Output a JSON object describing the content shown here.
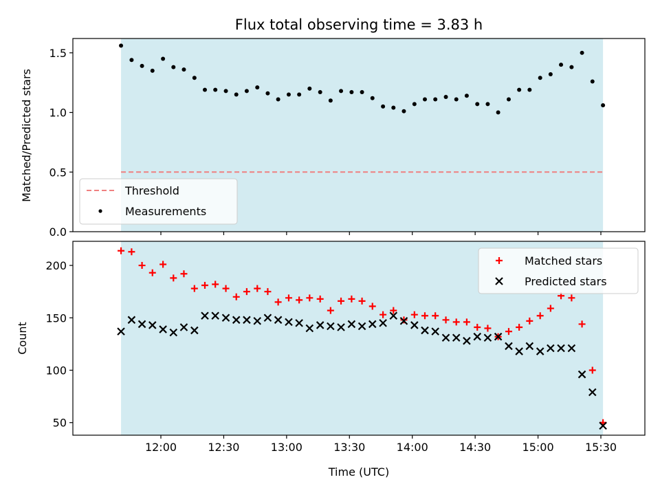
{
  "chart_data": [
    {
      "type": "scatter",
      "title": "Flux total observing time = 3.83 h",
      "xlabel": "",
      "ylabel": "Matched/Predicted stars",
      "ylim": [
        0,
        1.62
      ],
      "yticks": [
        0.0,
        0.5,
        1.0,
        1.5
      ],
      "ytick_labels": [
        "0.0",
        "0.5",
        "1.0",
        "1.5"
      ],
      "x_unit": "time (UTC, hours)",
      "xlim": [
        11.3,
        15.85
      ],
      "shade": {
        "from": 11.683,
        "to": 15.517,
        "color": "#d3ebf1"
      },
      "threshold": {
        "label": "Threshold",
        "value": 0.5,
        "color": "#f08080"
      },
      "legend": {
        "position": "lower-left",
        "entries": [
          "Threshold",
          "Measurements"
        ]
      },
      "series": [
        {
          "name": "Measurements",
          "color": "#000000",
          "x": [
            11.683,
            11.767,
            11.85,
            11.933,
            12.017,
            12.1,
            12.183,
            12.267,
            12.35,
            12.433,
            12.517,
            12.6,
            12.683,
            12.767,
            12.85,
            12.933,
            13.017,
            13.1,
            13.183,
            13.267,
            13.35,
            13.433,
            13.517,
            13.6,
            13.683,
            13.767,
            13.85,
            13.933,
            14.017,
            14.1,
            14.183,
            14.267,
            14.35,
            14.433,
            14.517,
            14.6,
            14.683,
            14.767,
            14.85,
            14.933,
            15.017,
            15.1,
            15.183,
            15.267,
            15.35,
            15.433,
            15.517
          ],
          "y": [
            1.56,
            1.44,
            1.39,
            1.35,
            1.45,
            1.38,
            1.36,
            1.29,
            1.19,
            1.19,
            1.18,
            1.15,
            1.18,
            1.21,
            1.16,
            1.11,
            1.15,
            1.15,
            1.2,
            1.17,
            1.1,
            1.18,
            1.17,
            1.17,
            1.12,
            1.05,
            1.04,
            1.01,
            1.07,
            1.11,
            1.11,
            1.13,
            1.11,
            1.14,
            1.07,
            1.07,
            1.0,
            1.11,
            1.19,
            1.19,
            1.29,
            1.32,
            1.4,
            1.38,
            1.5,
            1.26,
            1.06
          ]
        }
      ]
    },
    {
      "type": "scatter",
      "title": "",
      "xlabel": "Time (UTC)",
      "ylabel": "Count",
      "ylim": [
        38,
        223
      ],
      "yticks": [
        50,
        100,
        150,
        200
      ],
      "ytick_labels": [
        "50",
        "100",
        "150",
        "200"
      ],
      "xlim": [
        11.3,
        15.85
      ],
      "xticks": [
        12.0,
        12.5,
        13.0,
        13.5,
        14.0,
        14.5,
        15.0,
        15.5
      ],
      "xtick_labels": [
        "12:00",
        "12:30",
        "13:00",
        "13:30",
        "14:00",
        "14:30",
        "15:00",
        "15:30"
      ],
      "shade": {
        "from": 11.683,
        "to": 15.517,
        "color": "#d3ebf1"
      },
      "legend": {
        "position": "top-right",
        "entries": [
          "Matched stars",
          "Predicted stars"
        ]
      },
      "series": [
        {
          "name": "Matched stars",
          "marker": "plus",
          "color": "#ff0000",
          "x": [
            11.683,
            11.767,
            11.85,
            11.933,
            12.017,
            12.1,
            12.183,
            12.267,
            12.35,
            12.433,
            12.517,
            12.6,
            12.683,
            12.767,
            12.85,
            12.933,
            13.017,
            13.1,
            13.183,
            13.267,
            13.35,
            13.433,
            13.517,
            13.6,
            13.683,
            13.767,
            13.85,
            13.933,
            14.017,
            14.1,
            14.183,
            14.267,
            14.35,
            14.433,
            14.517,
            14.6,
            14.683,
            14.767,
            14.85,
            14.933,
            15.017,
            15.1,
            15.183,
            15.267,
            15.35,
            15.433,
            15.517
          ],
          "y": [
            214,
            213,
            200,
            193,
            201,
            188,
            192,
            178,
            181,
            182,
            178,
            170,
            175,
            178,
            175,
            165,
            169,
            167,
            169,
            168,
            157,
            166,
            168,
            166,
            161,
            153,
            157,
            148,
            153,
            152,
            152,
            148,
            146,
            146,
            141,
            140,
            132,
            137,
            141,
            147,
            152,
            159,
            171,
            169,
            144,
            100,
            50
          ]
        },
        {
          "name": "Predicted stars",
          "marker": "cross",
          "color": "#000000",
          "x": [
            11.683,
            11.767,
            11.85,
            11.933,
            12.017,
            12.1,
            12.183,
            12.267,
            12.35,
            12.433,
            12.517,
            12.6,
            12.683,
            12.767,
            12.85,
            12.933,
            13.017,
            13.1,
            13.183,
            13.267,
            13.35,
            13.433,
            13.517,
            13.6,
            13.683,
            13.767,
            13.85,
            13.933,
            14.017,
            14.1,
            14.183,
            14.267,
            14.35,
            14.433,
            14.517,
            14.6,
            14.683,
            14.767,
            14.85,
            14.933,
            15.017,
            15.1,
            15.183,
            15.267,
            15.35,
            15.433,
            15.517
          ],
          "y": [
            137,
            148,
            144,
            143,
            139,
            136,
            141,
            138,
            152,
            152,
            150,
            148,
            148,
            147,
            150,
            148,
            146,
            145,
            140,
            143,
            142,
            141,
            144,
            142,
            144,
            145,
            152,
            147,
            143,
            138,
            137,
            131,
            131,
            128,
            132,
            131,
            132,
            123,
            118,
            123,
            118,
            121,
            121,
            121,
            96,
            79,
            47
          ]
        }
      ]
    }
  ]
}
